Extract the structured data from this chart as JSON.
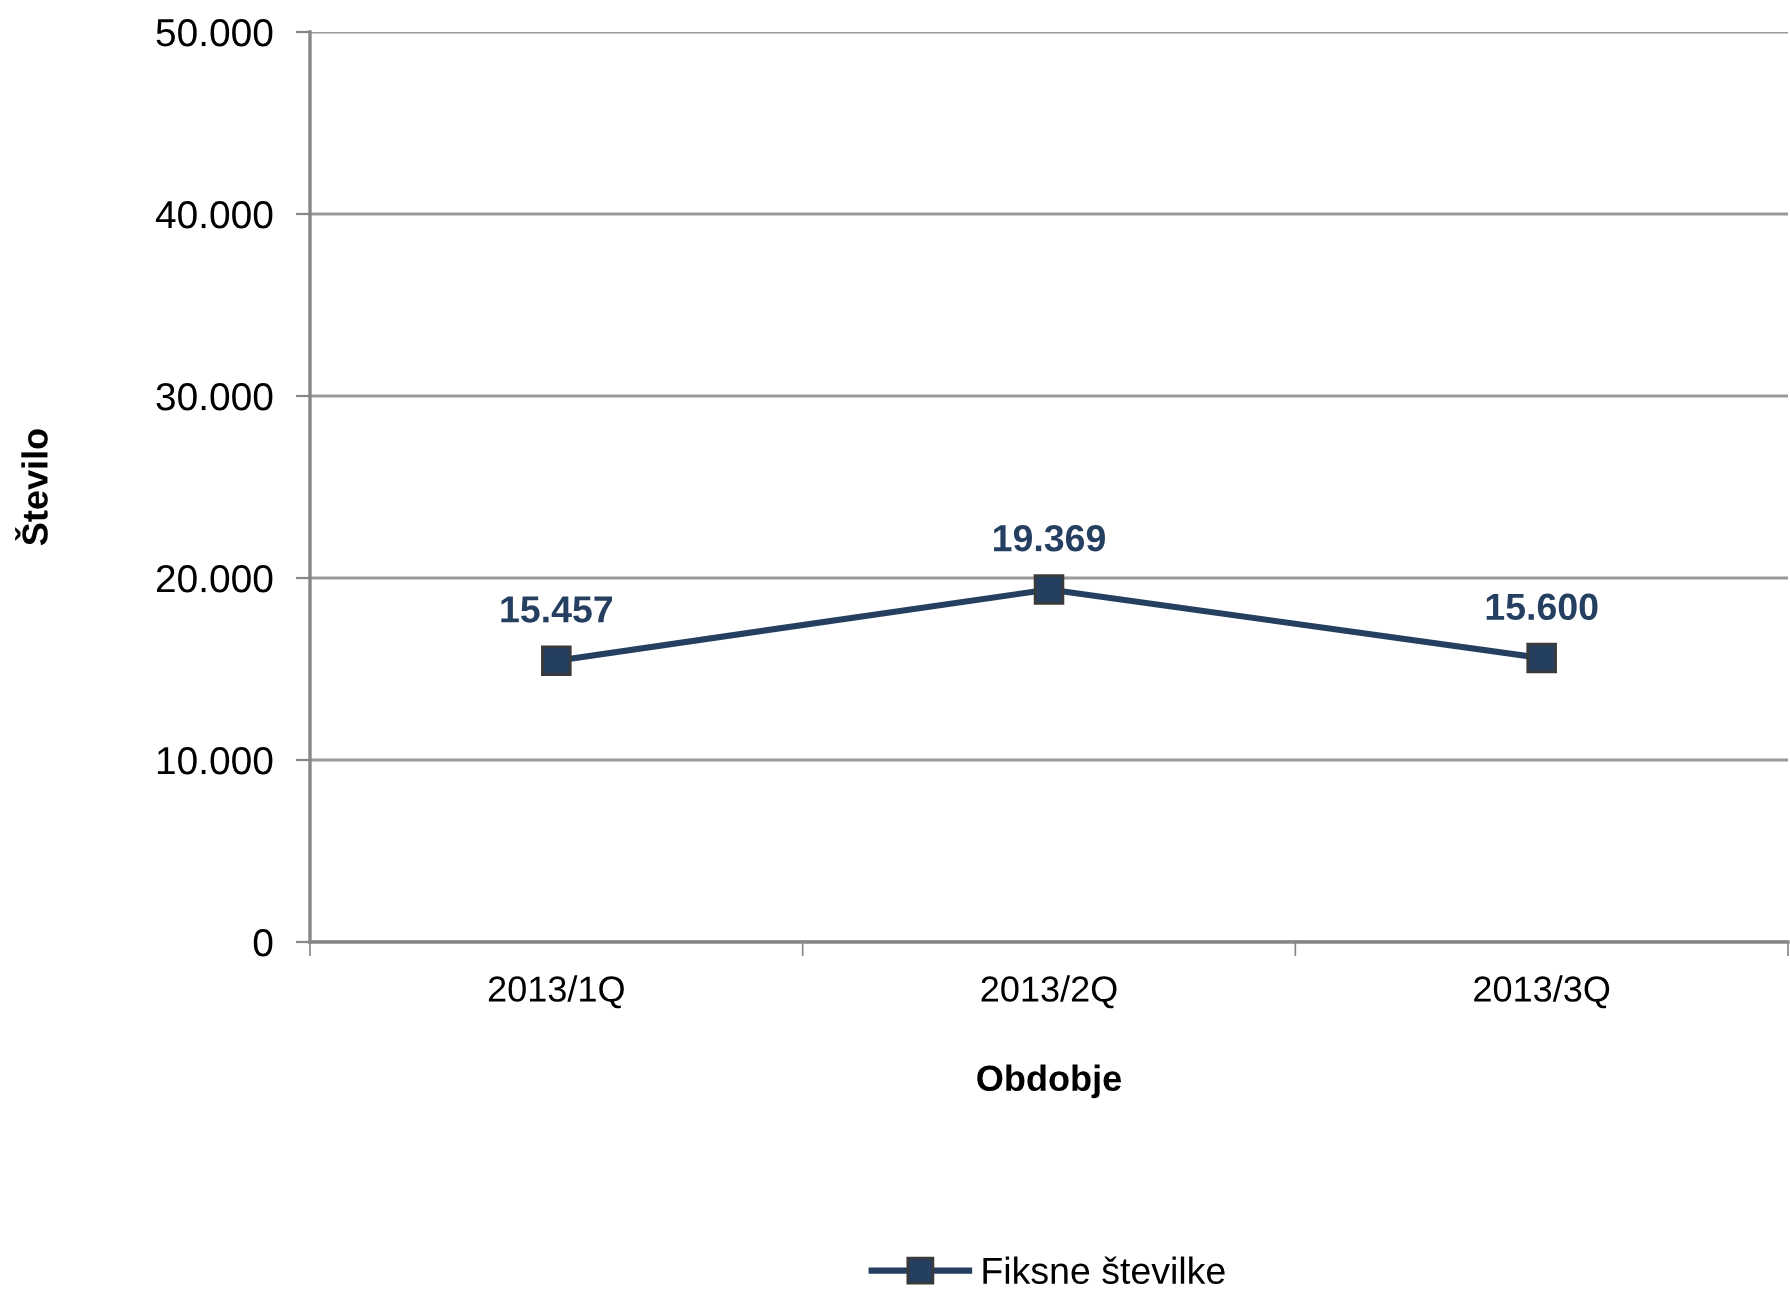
{
  "chart_data": {
    "type": "line",
    "xlabel": "Obdobje",
    "ylabel": "Število",
    "categories": [
      "2013/1Q",
      "2013/2Q",
      "2013/3Q"
    ],
    "series": [
      {
        "name": "Fiksne številke",
        "color": "#243f60",
        "values": [
          15457,
          19369,
          15600
        ],
        "value_labels": [
          "15.457",
          "19.369",
          "15.600"
        ]
      }
    ],
    "ylim": [
      0,
      50000
    ],
    "yticks": [
      0,
      {
        "value": 10000,
        "label": "10.000"
      },
      {
        "value": 20000,
        "label": "20.000"
      },
      {
        "value": 30000,
        "label": "30.000"
      },
      {
        "value": 40000,
        "label": "40.000"
      },
      {
        "value": 50000,
        "label": "50.000"
      }
    ],
    "grid": "y",
    "legend": "bottom",
    "marker": "square",
    "line_style": "solid"
  }
}
